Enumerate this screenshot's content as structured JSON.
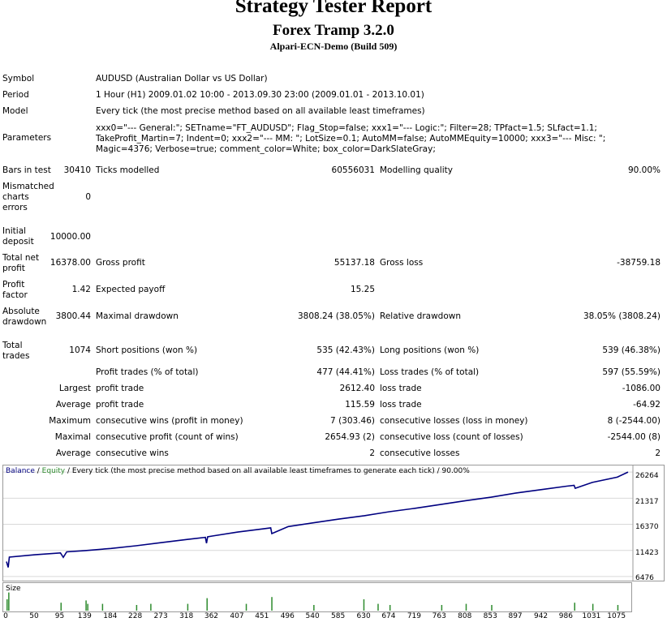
{
  "report": {
    "title": "Strategy Tester Report",
    "expert": "Forex Tramp 3.2.0",
    "server": "Alpari-ECN-Demo (Build 509)"
  },
  "info": {
    "symbol_label": "Symbol",
    "symbol": "AUDUSD (Australian Dollar vs US Dollar)",
    "period_label": "Period",
    "period": "1 Hour (H1) 2009.01.02 10:00 - 2013.09.30 23:00 (2009.01.01 - 2013.10.01)",
    "model_label": "Model",
    "model": "Every tick (the most precise method based on all available least timeframes)",
    "parameters_label": "Parameters",
    "parameters": "xxx0=\"--- General:\"; SETname=\"FT_AUDUSD\"; Flag_Stop=false; xxx1=\"--- Logic:\"; Filter=28; TPfact=1.5; SLfact=1.1; TakeProfit_Martin=7; Indent=0; xxx2=\"--- MM: \"; LotSize=0.1; AutoMM=false; AutoMMEquity=10000; xxx3=\"--- Misc: \"; Magic=4376; Verbose=true; comment_color=White; box_color=DarkSlateGray;"
  },
  "stats": {
    "bars_label": "Bars in test",
    "bars": "30410",
    "ticks_label": "Ticks modelled",
    "ticks": "60556031",
    "quality_label": "Modelling quality",
    "quality": "90.00%",
    "mismatched_label1": "Mismatched",
    "mismatched_label2": "charts",
    "mismatched_label3": "errors",
    "mismatched": "0",
    "initial_label1": "Initial",
    "initial_label2": "deposit",
    "initial": "10000.00",
    "netprofit_label1": "Total net",
    "netprofit_label2": "profit",
    "netprofit": "16378.00",
    "grossprofit_label": "Gross profit",
    "grossprofit": "55137.18",
    "grossloss_label": "Gross loss",
    "grossloss": "-38759.18",
    "pf_label1": "Profit",
    "pf_label2": "factor",
    "pf": "1.42",
    "payoff_label": "Expected payoff",
    "payoff": "15.25",
    "absdd_label1": "Absolute",
    "absdd_label2": "drawdown",
    "absdd": "3800.44",
    "maxdd_label": "Maximal drawdown",
    "maxdd": "3808.24 (38.05%)",
    "reldd_label": "Relative drawdown",
    "reldd": "38.05% (3808.24)",
    "trades_label1": "Total",
    "trades_label2": "trades",
    "trades": "1074",
    "short_label": "Short positions (won %)",
    "short": "535 (42.43%)",
    "long_label": "Long positions (won %)",
    "long": "539 (46.38%)",
    "profit_trades_label": "Profit trades (% of total)",
    "profit_trades": "477 (44.41%)",
    "loss_trades_label": "Loss trades (% of total)",
    "loss_trades": "597 (55.59%)",
    "largest_label": "Largest",
    "largest_profit_label": "profit trade",
    "largest_profit": "2612.40",
    "largest_loss_label": "loss trade",
    "largest_loss": "-1086.00",
    "average_label": "Average",
    "average_profit_label": "profit trade",
    "average_profit": "115.59",
    "average_loss_label": "loss trade",
    "average_loss": "-64.92",
    "maximum_label": "Maximum",
    "max_wins_label": "consecutive wins (profit in money)",
    "max_wins": "7 (303.46)",
    "max_losses_label": "consecutive losses (loss in money)",
    "max_losses": "8 (-2544.00)",
    "maximal_label": "Maximal",
    "maximal_profit_label": "consecutive profit (count of wins)",
    "maximal_profit": "2654.93 (2)",
    "maximal_loss_label": "consecutive loss (count of losses)",
    "maximal_loss": "-2544.00 (8)",
    "avg_consec_label": "Average",
    "avg_wins_label": "consecutive wins",
    "avg_wins": "2",
    "avg_losses_label": "consecutive losses",
    "avg_losses": "2"
  },
  "chart_caption": {
    "balance": "Balance",
    "sep1": " / ",
    "equity": "Equity",
    "rest": " / Every tick (the most precise method based on all available least timeframes to generate each tick) / 90.00%"
  },
  "colors": {
    "balance": "#000080",
    "equity": "#2e8b2e",
    "size_bars": "#2e8b2e"
  },
  "size_label": "Size",
  "chart_data": {
    "type": "line",
    "title": "",
    "y_ticks": [
      26264,
      21317,
      16370,
      11423,
      6476
    ],
    "x_ticks": [
      0,
      50,
      95,
      139,
      184,
      228,
      273,
      318,
      362,
      407,
      451,
      496,
      540,
      585,
      630,
      674,
      719,
      763,
      808,
      853,
      897,
      942,
      986,
      1031,
      1075
    ],
    "xlim": [
      0,
      1094
    ],
    "ylim": [
      6000,
      26900
    ],
    "series": [
      {
        "name": "Balance",
        "x": [
          0,
          3,
          5,
          50,
          95,
          100,
          106,
          139,
          184,
          228,
          273,
          318,
          350,
          352,
          354,
          362,
          407,
          451,
          465,
          467,
          496,
          540,
          585,
          630,
          674,
          719,
          763,
          808,
          853,
          897,
          942,
          986,
          999,
          1001,
          1031,
          1075,
          1094
        ],
        "y": [
          9300,
          8200,
          10150,
          10600,
          10950,
          10100,
          11150,
          11400,
          11800,
          12300,
          12900,
          13500,
          13900,
          12800,
          14000,
          14150,
          14900,
          15500,
          15700,
          14600,
          15950,
          16650,
          17350,
          18000,
          18750,
          19400,
          20100,
          20850,
          21500,
          22300,
          22950,
          23600,
          23750,
          23200,
          24300,
          25300,
          26264
        ]
      }
    ],
    "size_spikes": [
      {
        "x": 0,
        "h": 0.5
      },
      {
        "x": 3,
        "h": 0.8
      },
      {
        "x": 95,
        "h": 0.35
      },
      {
        "x": 139,
        "h": 0.45
      },
      {
        "x": 142,
        "h": 0.3
      },
      {
        "x": 168,
        "h": 0.3
      },
      {
        "x": 228,
        "h": 0.25
      },
      {
        "x": 253,
        "h": 0.3
      },
      {
        "x": 318,
        "h": 0.3
      },
      {
        "x": 352,
        "h": 0.55
      },
      {
        "x": 421,
        "h": 0.3
      },
      {
        "x": 466,
        "h": 0.6
      },
      {
        "x": 540,
        "h": 0.25
      },
      {
        "x": 628,
        "h": 0.5
      },
      {
        "x": 653,
        "h": 0.3
      },
      {
        "x": 674,
        "h": 0.25
      },
      {
        "x": 765,
        "h": 0.25
      },
      {
        "x": 808,
        "h": 0.3
      },
      {
        "x": 853,
        "h": 0.25
      },
      {
        "x": 999,
        "h": 0.35
      },
      {
        "x": 1031,
        "h": 0.3
      },
      {
        "x": 1075,
        "h": 0.25
      }
    ]
  }
}
